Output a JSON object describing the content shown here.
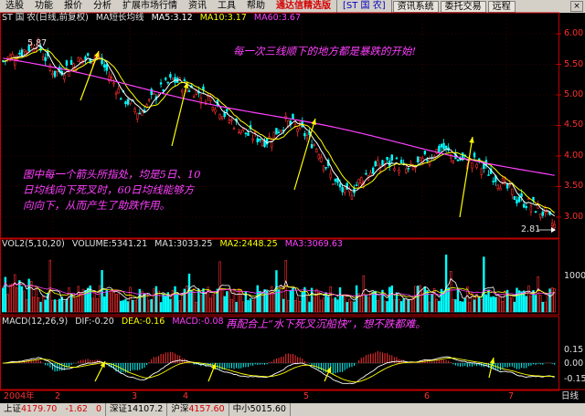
{
  "menubar": {
    "items": [
      "选股",
      "功能",
      "报价",
      "分析",
      "扩展市场行情",
      "资讯",
      "工具",
      "帮助"
    ],
    "title": "通达信精选版",
    "stock": "[ST 国 农]",
    "buttons": [
      "资讯系统",
      "委托交易",
      "远程"
    ],
    "close": "×"
  },
  "price_header": {
    "name": "ST 国 农(日线,前复权)",
    "indicator": "MA短长均线",
    "ma5": "MA5:3.12",
    "ma10": "MA10:3.17",
    "ma60": "MA60:3.67"
  },
  "price_axis": [
    "6.00",
    "5.50",
    "5.00",
    "4.50",
    "4.00",
    "3.50",
    "3.00"
  ],
  "high_label": "5.87",
  "low_label": "2.81",
  "volume_header": {
    "name": "VOL2(5,10,20)",
    "volume": "VOLUME:5341.21",
    "ma1": "MA1:3033.25",
    "ma2": "MA2:2448.25",
    "ma3": "MA3:3069.63"
  },
  "volume_axis": [
    "10000"
  ],
  "macd_header": {
    "name": "MACD(12,26,9)",
    "dif": "DIF:-0.20",
    "dea": "DEA:-0.16",
    "macd": "MACD:-0.08"
  },
  "macd_axis": [
    "0.15",
    "0.00",
    "-0.15"
  ],
  "time_axis": [
    "2004年",
    "2",
    "3",
    "4",
    "5",
    "6",
    "7"
  ],
  "time_corner": "日线",
  "annotations": {
    "top": "每一次三线顺下的地方都是暴跌的开始!",
    "left_lines": [
      "图中每一个箭头所指处，均是5日、10",
      "日均线向下死叉时，60日均线能够方",
      "向向下，从而产生了助跌作用。"
    ],
    "macd": "再配合上“水下死叉沉船快”，想不跌都难。"
  },
  "status": {
    "sh_label": "上证",
    "sh_value": "4179.70",
    "sh_change": "-1.62",
    "sh_extra": "0",
    "sz_label": "深证",
    "sz_value": "14107.2",
    "hs_label": "沪深",
    "hs_value": "4157.60",
    "zx_label": "中小",
    "zx_value": "5015.60"
  },
  "colors": {
    "up": "#ff3030",
    "down": "#00ffff",
    "ma5": "#ffffff",
    "ma10": "#ffff00",
    "ma60": "#ff40ff",
    "annotation_yellow": "#ffff00",
    "annotation_pink": "#ff40ff"
  }
}
